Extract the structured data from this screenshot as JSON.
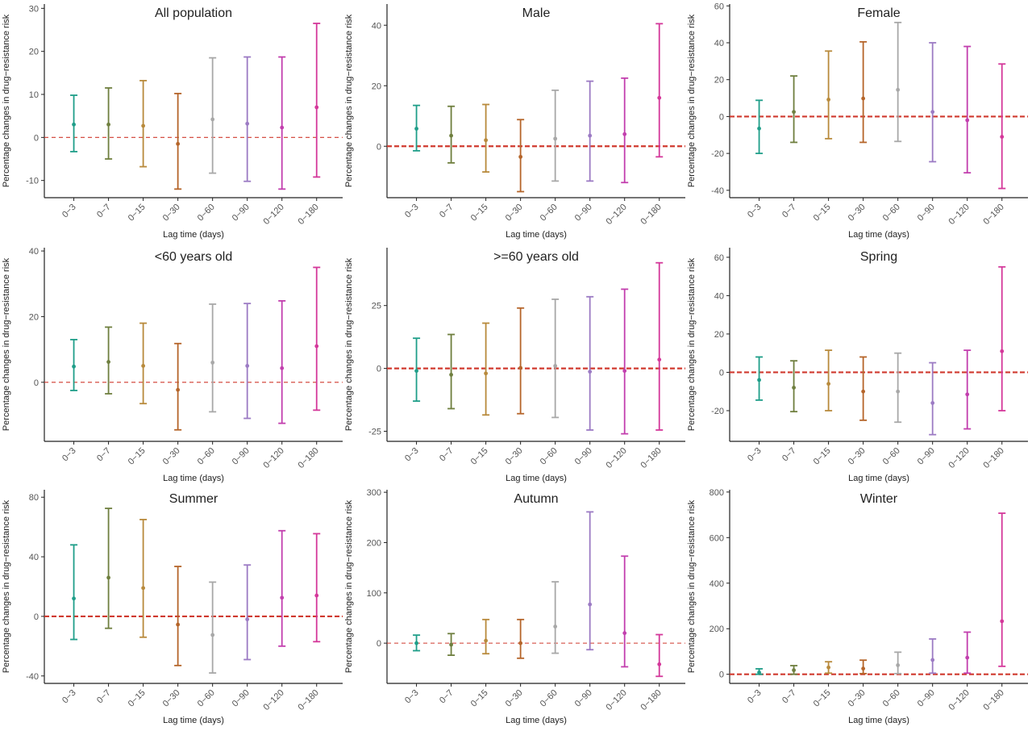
{
  "figure": {
    "xlabel": "Lag time (days)",
    "ylabel": "Percentage changes in drug−resistance risk"
  },
  "chart_data": [
    {
      "type": "errorbar",
      "title": "All population",
      "xlabel": "Lag time (days)",
      "ylabel": "Percentage changes in drug−resistance risk",
      "categories": [
        "0−3",
        "0−7",
        "0−15",
        "0−30",
        "0−60",
        "0−90",
        "0−120",
        "0−180"
      ],
      "estimate": [
        3,
        3,
        2.7,
        -1.5,
        4.2,
        3.2,
        2.3,
        7
      ],
      "lower": [
        -3.3,
        -5,
        -6.8,
        -12,
        -8.3,
        -10.2,
        -12,
        -9.2
      ],
      "upper": [
        9.8,
        11.5,
        13.2,
        10.2,
        18.5,
        18.7,
        18.7,
        26.5
      ],
      "yticks": [
        -10,
        0,
        10,
        20,
        30
      ],
      "ylim": [
        -14,
        31
      ],
      "reference_line": 0,
      "ref_style": "thin"
    },
    {
      "type": "errorbar",
      "title": "Male",
      "xlabel": "Lag time (days)",
      "ylabel": "Percentage changes in drug−resistance risk",
      "categories": [
        "0−3",
        "0−7",
        "0−15",
        "0−30",
        "0−60",
        "0−90",
        "0−120",
        "0−180"
      ],
      "estimate": [
        5.8,
        3.5,
        2,
        -3.5,
        2.5,
        3.5,
        4,
        16
      ],
      "lower": [
        -1.5,
        -5.5,
        -8.5,
        -15,
        -11.5,
        -11.5,
        -12,
        -3.5
      ],
      "upper": [
        13.5,
        13.2,
        13.8,
        8.8,
        18.5,
        21.5,
        22.5,
        40.5
      ],
      "yticks": [
        0,
        20,
        40
      ],
      "ylim": [
        -17,
        47
      ],
      "reference_line": 0,
      "ref_style": "thick"
    },
    {
      "type": "errorbar",
      "title": "Female",
      "xlabel": "Lag time (days)",
      "ylabel": "Percentage changes in drug−resistance risk",
      "categories": [
        "0−3",
        "0−7",
        "0−15",
        "0−30",
        "0−60",
        "0−90",
        "0−120",
        "0−180"
      ],
      "estimate": [
        -6.5,
        2.5,
        9.2,
        9.8,
        14.5,
        2.5,
        -2,
        -11
      ],
      "lower": [
        -20,
        -14,
        -12,
        -14,
        -13.5,
        -24.5,
        -30.5,
        -39
      ],
      "upper": [
        8.8,
        22,
        35.5,
        40.5,
        51,
        40,
        38,
        28.5
      ],
      "yticks": [
        -40,
        -20,
        0,
        20,
        40,
        60
      ],
      "ylim": [
        -44,
        61
      ],
      "reference_line": 0,
      "ref_style": "thick"
    },
    {
      "type": "errorbar",
      "title": "<60 years old",
      "xlabel": "Lag time (days)",
      "ylabel": "Percentage changes in drug−resistance risk",
      "categories": [
        "0−3",
        "0−7",
        "0−15",
        "0−30",
        "0−60",
        "0−90",
        "0−120",
        "0−180"
      ],
      "estimate": [
        4.8,
        6.2,
        5,
        -2.3,
        6,
        5,
        4.3,
        11
      ],
      "lower": [
        -2.5,
        -3.5,
        -6.5,
        -14.5,
        -9,
        -11,
        -12.5,
        -8.5
      ],
      "upper": [
        13,
        16.8,
        18,
        11.8,
        23.8,
        24,
        24.8,
        35
      ],
      "yticks": [
        0,
        20,
        40
      ],
      "ylim": [
        -18,
        41
      ],
      "reference_line": 0,
      "ref_style": "thin"
    },
    {
      "type": "errorbar",
      "title": ">=60 years old",
      "xlabel": "Lag time (days)",
      "ylabel": "Percentage changes in drug−resistance risk",
      "categories": [
        "0−3",
        "0−7",
        "0−15",
        "0−30",
        "0−60",
        "0−90",
        "0−120",
        "0−180"
      ],
      "estimate": [
        -1,
        -2.5,
        -2,
        0.2,
        1,
        -1.3,
        -1,
        3.5
      ],
      "lower": [
        -13,
        -16,
        -18.5,
        -18,
        -19.5,
        -24.5,
        -26,
        -24.5
      ],
      "upper": [
        12,
        13.5,
        18,
        24,
        27.5,
        28.5,
        31.5,
        42
      ],
      "yticks": [
        -25,
        0,
        25
      ],
      "ylim": [
        -29,
        48
      ],
      "reference_line": 0,
      "ref_style": "thick"
    },
    {
      "type": "errorbar",
      "title": "Spring",
      "xlabel": "Lag time (days)",
      "ylabel": "Percentage changes in drug−resistance risk",
      "categories": [
        "0−3",
        "0−7",
        "0−15",
        "0−30",
        "0−60",
        "0−90",
        "0−120",
        "0−180"
      ],
      "estimate": [
        -4,
        -8,
        -6,
        -10,
        -10,
        -16,
        -11.5,
        11
      ],
      "lower": [
        -14.5,
        -20.5,
        -20,
        -25,
        -26,
        -32.5,
        -29.5,
        -20
      ],
      "upper": [
        8,
        6,
        11.5,
        8,
        10,
        5,
        11.5,
        55
      ],
      "yticks": [
        -20,
        0,
        20,
        40,
        60
      ],
      "ylim": [
        -36,
        65
      ],
      "reference_line": 0,
      "ref_style": "thick"
    },
    {
      "type": "errorbar",
      "title": "Summer",
      "xlabel": "Lag time (days)",
      "ylabel": "Percentage changes in drug−resistance risk",
      "categories": [
        "0−3",
        "0−7",
        "0−15",
        "0−30",
        "0−60",
        "0−90",
        "0−120",
        "0−180"
      ],
      "estimate": [
        12,
        26,
        19,
        -5.5,
        -12.5,
        -2,
        12.5,
        14
      ],
      "lower": [
        -15.5,
        -8,
        -14,
        -33,
        -38,
        -29,
        -20,
        -17
      ],
      "upper": [
        48,
        72.5,
        65,
        33.5,
        23,
        34.5,
        57.5,
        55.5
      ],
      "yticks": [
        -40,
        0,
        40,
        80
      ],
      "ylim": [
        -45,
        85
      ],
      "reference_line": 0,
      "ref_style": "thick"
    },
    {
      "type": "errorbar",
      "title": "Autumn",
      "xlabel": "Lag time (days)",
      "ylabel": "Percentage changes in drug−resistance risk",
      "categories": [
        "0−3",
        "0−7",
        "0−15",
        "0−30",
        "0−60",
        "0−90",
        "0−120",
        "0−180"
      ],
      "estimate": [
        0,
        -3,
        5,
        0,
        33,
        77,
        20,
        -42
      ],
      "lower": [
        -15,
        -24,
        -21,
        -30,
        -20,
        -13,
        -47,
        -66
      ],
      "upper": [
        16,
        19,
        47,
        47,
        122,
        261,
        173,
        17
      ],
      "yticks": [
        0,
        100,
        200,
        300
      ],
      "ylim": [
        -80,
        305
      ],
      "reference_line": 0,
      "ref_style": "thin"
    },
    {
      "type": "errorbar",
      "title": "Winter",
      "xlabel": "Lag time (days)",
      "ylabel": "Percentage changes in drug−resistance risk",
      "categories": [
        "0−3",
        "0−7",
        "0−15",
        "0−30",
        "0−60",
        "0−90",
        "0−120",
        "0−180"
      ],
      "estimate": [
        8,
        18,
        30,
        25,
        40,
        63,
        73,
        233
      ],
      "lower": [
        0,
        0,
        5,
        3,
        3,
        5,
        5,
        35
      ],
      "upper": [
        24,
        38,
        55,
        62,
        97,
        155,
        185,
        707
      ],
      "yticks": [
        0,
        200,
        400,
        600,
        800
      ],
      "ylim": [
        -40,
        810
      ],
      "reference_line": 0,
      "ref_style": "thick"
    }
  ],
  "colors": {
    "series": [
      "#1f9e89",
      "#6f7f3f",
      "#b88a3c",
      "#b5652a",
      "#a8a8a8",
      "#9c7bc4",
      "#c23fae",
      "#d4389a"
    ],
    "reference_line": "#d03a2f",
    "axis": "#222222"
  }
}
